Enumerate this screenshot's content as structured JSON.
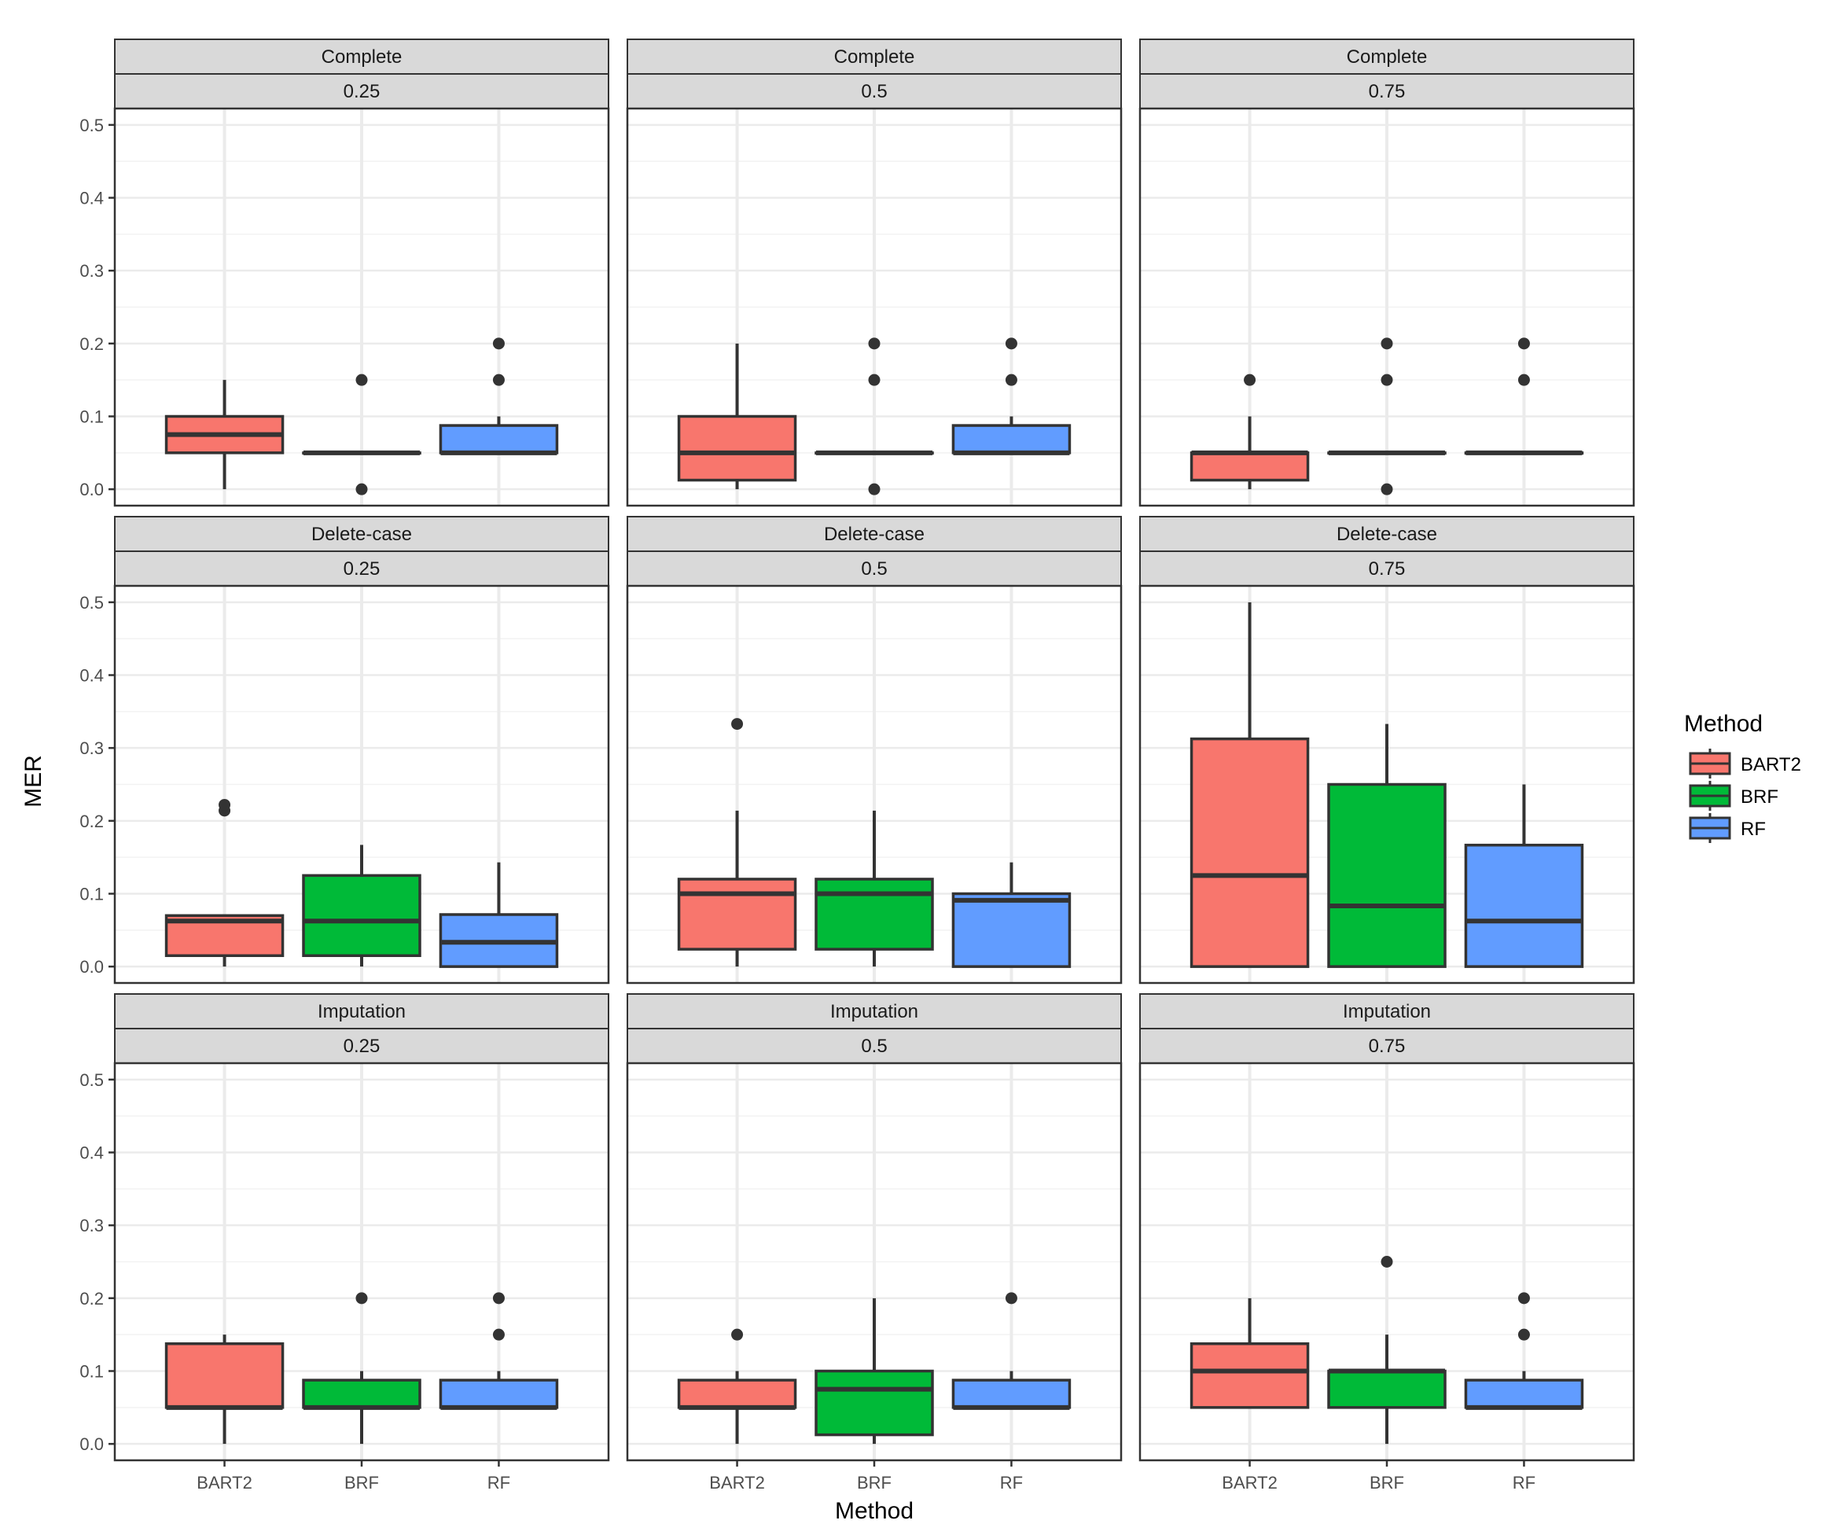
{
  "chart_data": {
    "type": "boxplot",
    "xlabel": "Method",
    "ylabel": "MER",
    "ylim": [
      0,
      0.5
    ],
    "yticks": [
      "0.0",
      "0.1",
      "0.2",
      "0.3",
      "0.4",
      "0.5"
    ],
    "categories": [
      "BART2",
      "BRF",
      "RF"
    ],
    "colors": {
      "BART2": "#F8766D",
      "BRF": "#00BA38",
      "RF": "#619CFF"
    },
    "legend": {
      "title": "Method",
      "position": "right",
      "entries": [
        "BART2",
        "BRF",
        "RF"
      ]
    },
    "facet_rows": [
      "Complete",
      "Delete-case",
      "Imputation"
    ],
    "facet_cols": [
      "0.25",
      "0.5",
      "0.75"
    ],
    "panels": [
      {
        "row": "Complete",
        "col": "0.25",
        "boxes": [
          {
            "method": "BART2",
            "q1": 0.05,
            "median": 0.075,
            "q3": 0.1,
            "lower": 0.0,
            "upper": 0.15,
            "outliers": []
          },
          {
            "method": "BRF",
            "q1": 0.05,
            "median": 0.05,
            "q3": 0.05,
            "lower": 0.05,
            "upper": 0.05,
            "outliers": [
              0.0,
              0.15
            ]
          },
          {
            "method": "RF",
            "q1": 0.05,
            "median": 0.05,
            "q3": 0.0875,
            "lower": 0.05,
            "upper": 0.1,
            "outliers": [
              0.15,
              0.2
            ]
          }
        ]
      },
      {
        "row": "Complete",
        "col": "0.5",
        "boxes": [
          {
            "method": "BART2",
            "q1": 0.0125,
            "median": 0.05,
            "q3": 0.1,
            "lower": 0.0,
            "upper": 0.2,
            "outliers": []
          },
          {
            "method": "BRF",
            "q1": 0.05,
            "median": 0.05,
            "q3": 0.05,
            "lower": 0.05,
            "upper": 0.05,
            "outliers": [
              0.0,
              0.15,
              0.2
            ]
          },
          {
            "method": "RF",
            "q1": 0.05,
            "median": 0.05,
            "q3": 0.0875,
            "lower": 0.05,
            "upper": 0.1,
            "outliers": [
              0.15,
              0.2
            ]
          }
        ]
      },
      {
        "row": "Complete",
        "col": "0.75",
        "boxes": [
          {
            "method": "BART2",
            "q1": 0.0125,
            "median": 0.05,
            "q3": 0.05,
            "lower": 0.0,
            "upper": 0.1,
            "outliers": [
              0.15
            ]
          },
          {
            "method": "BRF",
            "q1": 0.05,
            "median": 0.05,
            "q3": 0.05,
            "lower": 0.05,
            "upper": 0.05,
            "outliers": [
              0.0,
              0.15,
              0.2
            ]
          },
          {
            "method": "RF",
            "q1": 0.05,
            "median": 0.05,
            "q3": 0.05,
            "lower": 0.05,
            "upper": 0.05,
            "outliers": [
              0.15,
              0.2
            ]
          }
        ]
      },
      {
        "row": "Delete-case",
        "col": "0.25",
        "boxes": [
          {
            "method": "BART2",
            "q1": 0.015,
            "median": 0.0625,
            "q3": 0.07,
            "lower": 0.0,
            "upper": 0.07,
            "outliers": [
              0.214,
              0.222
            ]
          },
          {
            "method": "BRF",
            "q1": 0.015,
            "median": 0.0625,
            "q3": 0.125,
            "lower": 0.0,
            "upper": 0.167,
            "outliers": []
          },
          {
            "method": "RF",
            "q1": 0.0,
            "median": 0.0333,
            "q3": 0.0714,
            "lower": 0.0,
            "upper": 0.143,
            "outliers": []
          }
        ]
      },
      {
        "row": "Delete-case",
        "col": "0.5",
        "boxes": [
          {
            "method": "BART2",
            "q1": 0.0238,
            "median": 0.1,
            "q3": 0.12,
            "lower": 0.0,
            "upper": 0.214,
            "outliers": [
              0.333
            ]
          },
          {
            "method": "BRF",
            "q1": 0.0238,
            "median": 0.1,
            "q3": 0.12,
            "lower": 0.0,
            "upper": 0.214,
            "outliers": []
          },
          {
            "method": "RF",
            "q1": 0.0,
            "median": 0.0909,
            "q3": 0.1,
            "lower": 0.0,
            "upper": 0.143,
            "outliers": []
          }
        ]
      },
      {
        "row": "Delete-case",
        "col": "0.75",
        "boxes": [
          {
            "method": "BART2",
            "q1": 0.0,
            "median": 0.125,
            "q3": 0.3125,
            "lower": 0.0,
            "upper": 0.5,
            "outliers": []
          },
          {
            "method": "BRF",
            "q1": 0.0,
            "median": 0.0833,
            "q3": 0.25,
            "lower": 0.0,
            "upper": 0.333,
            "outliers": []
          },
          {
            "method": "RF",
            "q1": 0.0,
            "median": 0.0625,
            "q3": 0.1667,
            "lower": 0.0,
            "upper": 0.25,
            "outliers": []
          }
        ]
      },
      {
        "row": "Imputation",
        "col": "0.25",
        "boxes": [
          {
            "method": "BART2",
            "q1": 0.05,
            "median": 0.05,
            "q3": 0.1375,
            "lower": 0.0,
            "upper": 0.15,
            "outliers": []
          },
          {
            "method": "BRF",
            "q1": 0.05,
            "median": 0.05,
            "q3": 0.0875,
            "lower": 0.0,
            "upper": 0.1,
            "outliers": [
              0.2
            ]
          },
          {
            "method": "RF",
            "q1": 0.05,
            "median": 0.05,
            "q3": 0.0875,
            "lower": 0.05,
            "upper": 0.1,
            "outliers": [
              0.15,
              0.2
            ]
          }
        ]
      },
      {
        "row": "Imputation",
        "col": "0.5",
        "boxes": [
          {
            "method": "BART2",
            "q1": 0.05,
            "median": 0.05,
            "q3": 0.0875,
            "lower": 0.0,
            "upper": 0.1,
            "outliers": [
              0.15
            ]
          },
          {
            "method": "BRF",
            "q1": 0.0125,
            "median": 0.075,
            "q3": 0.1,
            "lower": 0.0,
            "upper": 0.2,
            "outliers": []
          },
          {
            "method": "RF",
            "q1": 0.05,
            "median": 0.05,
            "q3": 0.0875,
            "lower": 0.05,
            "upper": 0.1,
            "outliers": [
              0.2
            ]
          }
        ]
      },
      {
        "row": "Imputation",
        "col": "0.75",
        "boxes": [
          {
            "method": "BART2",
            "q1": 0.05,
            "median": 0.1,
            "q3": 0.1375,
            "lower": 0.05,
            "upper": 0.2,
            "outliers": []
          },
          {
            "method": "BRF",
            "q1": 0.05,
            "median": 0.1,
            "q3": 0.1,
            "lower": 0.0,
            "upper": 0.15,
            "outliers": [
              0.25
            ]
          },
          {
            "method": "RF",
            "q1": 0.05,
            "median": 0.05,
            "q3": 0.0875,
            "lower": 0.05,
            "upper": 0.1,
            "outliers": [
              0.15,
              0.2
            ]
          }
        ]
      }
    ]
  }
}
